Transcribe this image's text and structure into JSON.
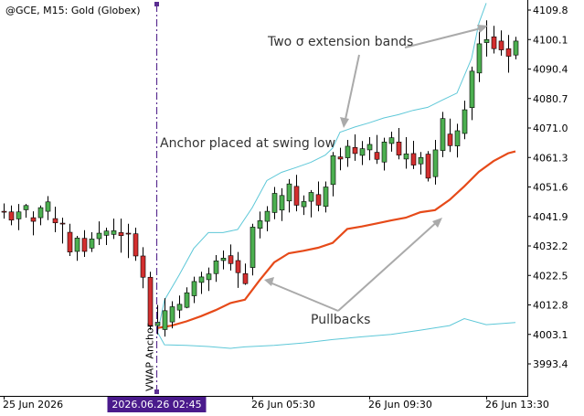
{
  "symbol_label": "@GCE, M15:  Gold (Globex)",
  "anchor_marker_label": "VWAP Anchor",
  "highlighted_time_label": "2026.06.26 02:45",
  "annotations": {
    "bands": "Two σ extension bands",
    "anchor": "Anchor placed at swing low",
    "pullbacks": "Pullbacks"
  },
  "colors": {
    "bull": "#4caf50",
    "bear": "#d32f2f",
    "vwap": "#e64a19",
    "band": "#5ec8d8",
    "anchor_line": "#5a2d91",
    "highlight_bg": "#4a1a8c",
    "arrow": "#aaaaaa"
  },
  "chart_data": {
    "type": "candlestick",
    "y_ticks": [
      "4109.8",
      "4100.1",
      "4090.4",
      "4080.7",
      "4071.0",
      "4061.3",
      "4051.6",
      "4041.9",
      "4032.2",
      "4022.5",
      "4012.8",
      "4003.1",
      "3993.4"
    ],
    "ylim": [
      3987.6,
      4111.8
    ],
    "x_ticks": [
      {
        "label": "25 Jun 2026",
        "bar": 0
      },
      {
        "label": "26 Jun 05:30",
        "bar": 34
      },
      {
        "label": "26 Jun 09:30",
        "bar": 50
      },
      {
        "label": "26 Jun 13:30",
        "bar": 66
      }
    ],
    "highlighted_bar": 21,
    "candles": [
      [
        4043.6,
        4046.2,
        4041.2,
        4043.4
      ],
      [
        4043.4,
        4045.5,
        4039.0,
        4040.7
      ],
      [
        4041.1,
        4046.0,
        4037.4,
        4043.4
      ],
      [
        4044.1,
        4046.0,
        4041.5,
        4045.5
      ],
      [
        4041.5,
        4043.6,
        4035.7,
        4040.3
      ],
      [
        4041.5,
        4045.5,
        4039.0,
        4044.8
      ],
      [
        4043.6,
        4048.6,
        4040.7,
        4046.7
      ],
      [
        4041.2,
        4045.1,
        4036.7,
        4039.8
      ],
      [
        4039.7,
        4041.5,
        4033.0,
        4039.5
      ],
      [
        4036.7,
        4039.5,
        4028.9,
        4030.2
      ],
      [
        4030.4,
        4035.5,
        4027.3,
        4034.8
      ],
      [
        4034.7,
        4037.4,
        4028.6,
        4030.4
      ],
      [
        4031.5,
        4036.7,
        4030.2,
        4034.5
      ],
      [
        4034.6,
        4040.3,
        4032.5,
        4036.4
      ],
      [
        4035.7,
        4038.2,
        4032.5,
        4037.1
      ],
      [
        4036.0,
        4041.2,
        4034.5,
        4037.2
      ],
      [
        4036.6,
        4041.2,
        4030.0,
        4035.6
      ],
      [
        4036.4,
        4039.5,
        4028.2,
        4036.2
      ],
      [
        4036.2,
        4038.2,
        4027.3,
        4028.9
      ],
      [
        4028.9,
        4031.8,
        4018.3,
        4021.9
      ],
      [
        4021.9,
        4023.7,
        4004.6,
        4006.0
      ],
      [
        4006.0,
        4012.8,
        4003.1,
        4007.1
      ],
      [
        4004.7,
        4015.0,
        4002.4,
        4010.9
      ],
      [
        4007.2,
        4014.0,
        4005.1,
        4012.2
      ],
      [
        4011.1,
        4015.9,
        4008.4,
        4013.0
      ],
      [
        4012.0,
        4018.6,
        4011.7,
        4016.8
      ],
      [
        4015.8,
        4022.1,
        4013.4,
        4020.5
      ],
      [
        4020.2,
        4023.7,
        4016.4,
        4022.0
      ],
      [
        4021.1,
        4025.1,
        4017.4,
        4023.0
      ],
      [
        4023.1,
        4029.2,
        4020.4,
        4027.3
      ],
      [
        4027.4,
        4030.7,
        4024.5,
        4028.2
      ],
      [
        4029.0,
        4032.7,
        4024.1,
        4026.4
      ],
      [
        4027.4,
        4030.2,
        4018.4,
        4023.4
      ],
      [
        4023.1,
        4026.4,
        4019.4,
        4019.8
      ],
      [
        4025.1,
        4039.5,
        4022.5,
        4038.4
      ],
      [
        4038.0,
        4043.5,
        4034.7,
        4040.5
      ],
      [
        4040.3,
        4045.3,
        4037.0,
        4043.6
      ],
      [
        4043.2,
        4051.6,
        4041.0,
        4049.5
      ],
      [
        4044.0,
        4051.2,
        4040.4,
        4048.8
      ],
      [
        4047.0,
        4054.2,
        4043.2,
        4052.6
      ],
      [
        4051.8,
        4055.6,
        4043.6,
        4045.6
      ],
      [
        4045.1,
        4048.8,
        4042.4,
        4046.8
      ],
      [
        4046.9,
        4050.6,
        4041.6,
        4049.8
      ],
      [
        4049.1,
        4053.4,
        4043.6,
        4045.6
      ],
      [
        4045.2,
        4053.4,
        4043.2,
        4051.6
      ],
      [
        4052.4,
        4063.1,
        4048.5,
        4061.9
      ],
      [
        4061.5,
        4064.5,
        4057.1,
        4060.8
      ],
      [
        4061.2,
        4067.1,
        4058.2,
        4065.0
      ],
      [
        4064.6,
        4068.9,
        4060.2,
        4062.6
      ],
      [
        4062.0,
        4066.7,
        4058.8,
        4064.2
      ],
      [
        4063.8,
        4068.0,
        4060.4,
        4065.6
      ],
      [
        4063.0,
        4068.7,
        4059.2,
        4060.7
      ],
      [
        4059.8,
        4067.8,
        4057.0,
        4066.4
      ],
      [
        4065.9,
        4069.8,
        4063.2,
        4067.8
      ],
      [
        4066.4,
        4071.0,
        4060.7,
        4062.1
      ],
      [
        4060.8,
        4068.0,
        4057.6,
        4062.5
      ],
      [
        4062.6,
        4066.8,
        4057.5,
        4058.8
      ],
      [
        4059.2,
        4063.1,
        4055.7,
        4061.3
      ],
      [
        4062.4,
        4063.4,
        4053.4,
        4054.5
      ],
      [
        4055.0,
        4067.1,
        4052.4,
        4063.8
      ],
      [
        4063.6,
        4076.3,
        4061.4,
        4074.1
      ],
      [
        4069.0,
        4074.1,
        4063.1,
        4065.2
      ],
      [
        4065.1,
        4072.4,
        4061.3,
        4070.1
      ],
      [
        4069.2,
        4080.0,
        4067.3,
        4077.0
      ],
      [
        4077.7,
        4091.2,
        4073.6,
        4089.7
      ],
      [
        4089.1,
        4102.7,
        4086.1,
        4098.7
      ],
      [
        4099.1,
        4106.4,
        4094.5,
        4100.1
      ],
      [
        4101.0,
        4104.6,
        4095.5,
        4097.1
      ],
      [
        4099.6,
        4103.1,
        4094.8,
        4096.7
      ],
      [
        4097.1,
        4101.6,
        4089.2,
        4094.6
      ],
      [
        4095.0,
        4101.0,
        4093.6,
        4099.6
      ]
    ],
    "series": [
      {
        "name": "VWAP",
        "points": [
          [
            21,
            4005.2
          ],
          [
            23,
            4006.0
          ],
          [
            25,
            4007.4
          ],
          [
            27,
            4009.1
          ],
          [
            29,
            4011.1
          ],
          [
            31,
            4013.4
          ],
          [
            33,
            4014.5
          ],
          [
            35,
            4020.9
          ],
          [
            37,
            4026.8
          ],
          [
            39,
            4029.8
          ],
          [
            41,
            4030.6
          ],
          [
            43,
            4031.6
          ],
          [
            45,
            4033.2
          ],
          [
            47,
            4037.8
          ],
          [
            49,
            4038.6
          ],
          [
            51,
            4039.6
          ],
          [
            53,
            4040.6
          ],
          [
            55,
            4041.5
          ],
          [
            57,
            4043.3
          ],
          [
            59,
            4044.0
          ],
          [
            61,
            4047.4
          ],
          [
            63,
            4051.8
          ],
          [
            65,
            4056.6
          ],
          [
            67,
            4060.1
          ],
          [
            69,
            4062.7
          ],
          [
            70,
            4063.3
          ]
        ]
      },
      {
        "name": "Upper band",
        "points": [
          [
            21,
            4003.2
          ],
          [
            22,
            4014.4
          ],
          [
            24,
            4022.6
          ],
          [
            26,
            4031.4
          ],
          [
            28,
            4036.6
          ],
          [
            30,
            4036.6
          ],
          [
            32,
            4037.6
          ],
          [
            34,
            4044.8
          ],
          [
            36,
            4053.7
          ],
          [
            38,
            4056.4
          ],
          [
            40,
            4058.0
          ],
          [
            42,
            4059.7
          ],
          [
            44,
            4062.1
          ],
          [
            45,
            4064.4
          ],
          [
            46,
            4069.6
          ],
          [
            48,
            4071.3
          ],
          [
            50,
            4072.7
          ],
          [
            52,
            4074.3
          ],
          [
            54,
            4075.4
          ],
          [
            56,
            4076.8
          ],
          [
            58,
            4077.8
          ],
          [
            60,
            4080.2
          ],
          [
            62,
            4082.5
          ],
          [
            64,
            4093.9
          ],
          [
            65,
            4105.5
          ],
          [
            66,
            4112.1
          ]
        ]
      },
      {
        "name": "Lower band",
        "points": [
          [
            21,
            4004.0
          ],
          [
            22,
            3999.7
          ],
          [
            25,
            3999.5
          ],
          [
            28,
            3999.1
          ],
          [
            31,
            3998.5
          ],
          [
            33,
            3999.0
          ],
          [
            37,
            3999.5
          ],
          [
            41,
            4000.3
          ],
          [
            45,
            4001.4
          ],
          [
            49,
            4002.3
          ],
          [
            53,
            4003.1
          ],
          [
            57,
            4004.5
          ],
          [
            61,
            4006.0
          ],
          [
            63,
            4008.3
          ],
          [
            66,
            4006.3
          ],
          [
            70,
            4007.0
          ]
        ]
      }
    ]
  }
}
